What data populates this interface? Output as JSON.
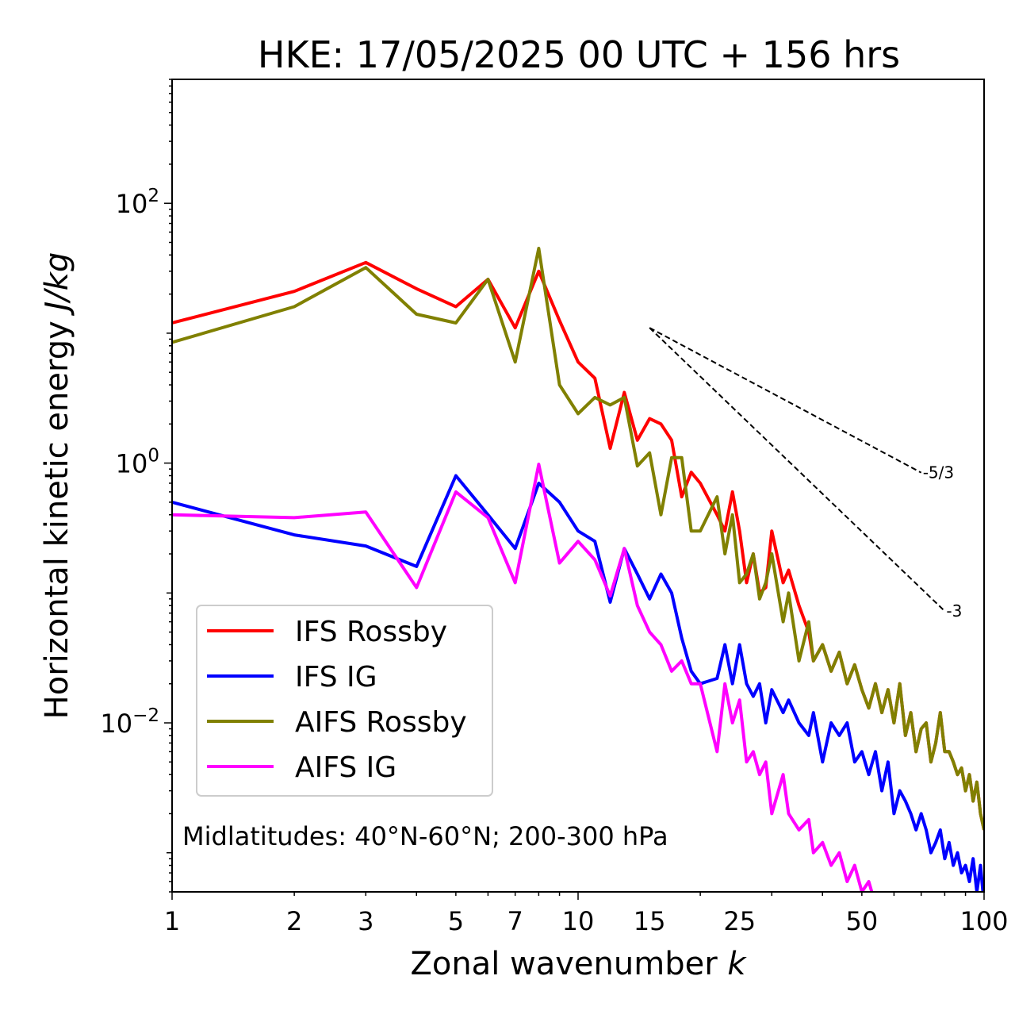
{
  "chart_data": {
    "type": "line",
    "title": "HKE: 17/05/2025 00 UTC + 156 hrs",
    "xlabel": "Zonal wavenumber",
    "xlabel_var": "k",
    "ylabel": "Horizontal kinetic energy",
    "ylabel_unit": "J/kg",
    "xscale": "log",
    "yscale": "log",
    "xlim": [
      1,
      100
    ],
    "ylim": [
      0.0005,
      900
    ],
    "xticks": [
      1,
      2,
      3,
      5,
      7,
      10,
      15,
      25,
      50,
      100
    ],
    "yticks": [
      {
        "value": 100,
        "base": "10",
        "exp": "2"
      },
      {
        "value": 1,
        "base": "10",
        "exp": "0"
      },
      {
        "value": 0.01,
        "base": "10",
        "exp": "−2"
      }
    ],
    "legend_position": "lower-left",
    "annotation": "Midlatitudes: 40°N-60°N; 200-300 hPa",
    "reference_slopes": [
      {
        "label": "-5/3",
        "slope": -1.6667,
        "x_start": 15,
        "x_end": 70,
        "y_start": 11
      },
      {
        "label": "-3",
        "slope": -3,
        "x_start": 15,
        "x_end": 80,
        "y_start": 11
      }
    ],
    "series": [
      {
        "name": "IFS Rossby",
        "color": "#ff0000",
        "points": [
          [
            1,
            12
          ],
          [
            2,
            21
          ],
          [
            3,
            35
          ],
          [
            4,
            22
          ],
          [
            5,
            16
          ],
          [
            6,
            26
          ],
          [
            7,
            11
          ],
          [
            8,
            30
          ],
          [
            9,
            12.5
          ],
          [
            10,
            6
          ],
          [
            11,
            4.5
          ],
          [
            12,
            1.3
          ],
          [
            13,
            3.5
          ],
          [
            14,
            1.5
          ],
          [
            15,
            2.2
          ],
          [
            16,
            2.0
          ],
          [
            17,
            1.5
          ],
          [
            18,
            0.55
          ],
          [
            19,
            0.85
          ],
          [
            20,
            0.7
          ],
          [
            22,
            0.4
          ],
          [
            23,
            0.3
          ],
          [
            24,
            0.6
          ],
          [
            25,
            0.3
          ],
          [
            26,
            0.12
          ],
          [
            27,
            0.2
          ],
          [
            28,
            0.1
          ],
          [
            29,
            0.11
          ],
          [
            30,
            0.3
          ],
          [
            32,
            0.12
          ],
          [
            33,
            0.15
          ],
          [
            35,
            0.08
          ],
          [
            37,
            0.05
          ],
          [
            38,
            0.03
          ],
          [
            40,
            0.04
          ],
          [
            42,
            0.025
          ],
          [
            44,
            0.035
          ],
          [
            46,
            0.02
          ],
          [
            48,
            0.028
          ],
          [
            50,
            0.018
          ],
          [
            52,
            0.013
          ],
          [
            54,
            0.02
          ],
          [
            56,
            0.012
          ],
          [
            58,
            0.018
          ],
          [
            60,
            0.01
          ],
          [
            62,
            0.02
          ],
          [
            64,
            0.008
          ],
          [
            66,
            0.012
          ],
          [
            68,
            0.006
          ],
          [
            70,
            0.009
          ],
          [
            72,
            0.01
          ],
          [
            74,
            0.005
          ],
          [
            76,
            0.007
          ],
          [
            78,
            0.012
          ],
          [
            80,
            0.006
          ],
          [
            82,
            0.006
          ],
          [
            84,
            0.005
          ],
          [
            86,
            0.004
          ],
          [
            88,
            0.0045
          ],
          [
            90,
            0.003
          ],
          [
            92,
            0.004
          ],
          [
            94,
            0.0025
          ],
          [
            96,
            0.0035
          ],
          [
            98,
            0.002
          ],
          [
            100,
            0.0015
          ]
        ]
      },
      {
        "name": "IFS IG",
        "color": "#0000ff",
        "points": [
          [
            1,
            0.5
          ],
          [
            2,
            0.28
          ],
          [
            3,
            0.23
          ],
          [
            4,
            0.16
          ],
          [
            5,
            0.8
          ],
          [
            6,
            0.4
          ],
          [
            7,
            0.22
          ],
          [
            8,
            0.7
          ],
          [
            9,
            0.5
          ],
          [
            10,
            0.3
          ],
          [
            11,
            0.25
          ],
          [
            12,
            0.085
          ],
          [
            13,
            0.22
          ],
          [
            14,
            0.14
          ],
          [
            15,
            0.09
          ],
          [
            16,
            0.14
          ],
          [
            17,
            0.1
          ],
          [
            18,
            0.045
          ],
          [
            19,
            0.025
          ],
          [
            20,
            0.02
          ],
          [
            22,
            0.022
          ],
          [
            23,
            0.04
          ],
          [
            24,
            0.02
          ],
          [
            25,
            0.04
          ],
          [
            26,
            0.02
          ],
          [
            27,
            0.016
          ],
          [
            28,
            0.02
          ],
          [
            29,
            0.01
          ],
          [
            30,
            0.018
          ],
          [
            32,
            0.012
          ],
          [
            33,
            0.015
          ],
          [
            35,
            0.01
          ],
          [
            37,
            0.008
          ],
          [
            38,
            0.012
          ],
          [
            40,
            0.005
          ],
          [
            42,
            0.01
          ],
          [
            44,
            0.008
          ],
          [
            46,
            0.01
          ],
          [
            48,
            0.005
          ],
          [
            50,
            0.006
          ],
          [
            52,
            0.004
          ],
          [
            54,
            0.006
          ],
          [
            56,
            0.003
          ],
          [
            58,
            0.005
          ],
          [
            60,
            0.002
          ],
          [
            62,
            0.003
          ],
          [
            64,
            0.0025
          ],
          [
            66,
            0.002
          ],
          [
            68,
            0.0015
          ],
          [
            70,
            0.002
          ],
          [
            72,
            0.0015
          ],
          [
            74,
            0.001
          ],
          [
            76,
            0.0012
          ],
          [
            78,
            0.0015
          ],
          [
            80,
            0.0009
          ],
          [
            82,
            0.0012
          ],
          [
            84,
            0.0008
          ],
          [
            86,
            0.001
          ],
          [
            88,
            0.0007
          ],
          [
            90,
            0.0008
          ],
          [
            92,
            0.0006
          ],
          [
            94,
            0.0009
          ],
          [
            96,
            0.0005
          ],
          [
            98,
            0.0008
          ],
          [
            100,
            0.0004
          ]
        ]
      },
      {
        "name": "AIFS Rossby",
        "color": "#808000",
        "points": [
          [
            1,
            8.5
          ],
          [
            2,
            16
          ],
          [
            3,
            32
          ],
          [
            4,
            14
          ],
          [
            5,
            12
          ],
          [
            6,
            26
          ],
          [
            7,
            6
          ],
          [
            8,
            45
          ],
          [
            9,
            4
          ],
          [
            10,
            2.4
          ],
          [
            11,
            3.2
          ],
          [
            12,
            2.8
          ],
          [
            13,
            3.2
          ],
          [
            14,
            0.95
          ],
          [
            15,
            1.2
          ],
          [
            16,
            0.4
          ],
          [
            17,
            1.1
          ],
          [
            18,
            1.1
          ],
          [
            19,
            0.3
          ],
          [
            20,
            0.3
          ],
          [
            22,
            0.55
          ],
          [
            23,
            0.2
          ],
          [
            24,
            0.4
          ],
          [
            25,
            0.12
          ],
          [
            26,
            0.14
          ],
          [
            27,
            0.2
          ],
          [
            28,
            0.09
          ],
          [
            29,
            0.12
          ],
          [
            30,
            0.2
          ],
          [
            32,
            0.06
          ],
          [
            33,
            0.1
          ],
          [
            35,
            0.03
          ],
          [
            37,
            0.06
          ],
          [
            38,
            0.03
          ],
          [
            40,
            0.04
          ],
          [
            42,
            0.025
          ],
          [
            44,
            0.035
          ],
          [
            46,
            0.02
          ],
          [
            48,
            0.028
          ],
          [
            50,
            0.018
          ],
          [
            52,
            0.013
          ],
          [
            54,
            0.02
          ],
          [
            56,
            0.012
          ],
          [
            58,
            0.018
          ],
          [
            60,
            0.01
          ],
          [
            62,
            0.02
          ],
          [
            64,
            0.008
          ],
          [
            66,
            0.012
          ],
          [
            68,
            0.006
          ],
          [
            70,
            0.009
          ],
          [
            72,
            0.01
          ],
          [
            74,
            0.005
          ],
          [
            76,
            0.007
          ],
          [
            78,
            0.012
          ],
          [
            80,
            0.006
          ],
          [
            82,
            0.006
          ],
          [
            84,
            0.005
          ],
          [
            86,
            0.004
          ],
          [
            88,
            0.0045
          ],
          [
            90,
            0.003
          ],
          [
            92,
            0.004
          ],
          [
            94,
            0.0025
          ],
          [
            96,
            0.0035
          ],
          [
            98,
            0.002
          ],
          [
            100,
            0.0015
          ]
        ]
      },
      {
        "name": "AIFS IG",
        "color": "#ff00ff",
        "points": [
          [
            1,
            0.4
          ],
          [
            2,
            0.38
          ],
          [
            3,
            0.42
          ],
          [
            4,
            0.11
          ],
          [
            5,
            0.6
          ],
          [
            6,
            0.38
          ],
          [
            7,
            0.12
          ],
          [
            8,
            0.98
          ],
          [
            9,
            0.17
          ],
          [
            10,
            0.25
          ],
          [
            11,
            0.18
          ],
          [
            12,
            0.095
          ],
          [
            13,
            0.22
          ],
          [
            14,
            0.08
          ],
          [
            15,
            0.05
          ],
          [
            16,
            0.04
          ],
          [
            17,
            0.025
          ],
          [
            18,
            0.03
          ],
          [
            19,
            0.02
          ],
          [
            20,
            0.02
          ],
          [
            22,
            0.006
          ],
          [
            23,
            0.02
          ],
          [
            24,
            0.01
          ],
          [
            25,
            0.015
          ],
          [
            26,
            0.005
          ],
          [
            27,
            0.006
          ],
          [
            28,
            0.004
          ],
          [
            29,
            0.005
          ],
          [
            30,
            0.002
          ],
          [
            32,
            0.004
          ],
          [
            33,
            0.002
          ],
          [
            35,
            0.0015
          ],
          [
            37,
            0.0018
          ],
          [
            38,
            0.001
          ],
          [
            40,
            0.0012
          ],
          [
            42,
            0.0008
          ],
          [
            44,
            0.001
          ],
          [
            46,
            0.0006
          ],
          [
            48,
            0.0008
          ],
          [
            50,
            0.0005
          ],
          [
            52,
            0.0006
          ],
          [
            54,
            0.0004
          ],
          [
            56,
            0.0005
          ]
        ]
      }
    ]
  }
}
